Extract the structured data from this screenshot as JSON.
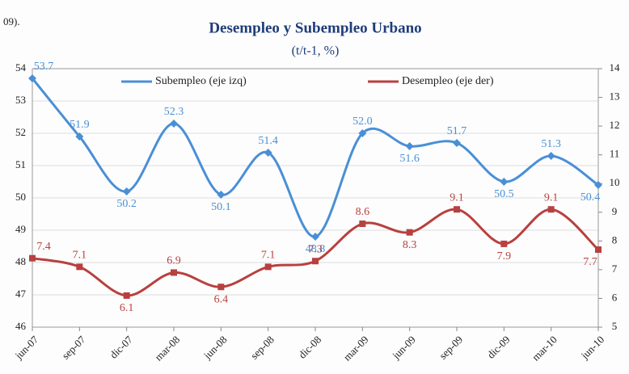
{
  "note": "09).",
  "chart_data": {
    "type": "line",
    "title": "Desempleo y Subempleo Urbano",
    "subtitle": "(t/t-1, %)",
    "categories": [
      "jun-07",
      "sep-07",
      "dic-07",
      "mar-08",
      "jun-08",
      "sep-08",
      "dic-08",
      "mar-09",
      "jun-09",
      "sep-09",
      "dic-09",
      "mar-10",
      "jun-10"
    ],
    "series": [
      {
        "name": "Subempleo (eje izq)",
        "color": "#4a8fd6",
        "marker": "diamond",
        "values": [
          53.7,
          51.9,
          50.2,
          52.3,
          50.1,
          51.4,
          48.8,
          52.0,
          51.6,
          51.7,
          50.5,
          51.3,
          50.4
        ],
        "value_labels": [
          "53.7",
          "51.9",
          "50.2",
          "52.3",
          "50.1",
          "51.4",
          "48.8",
          "52.0",
          "51.6",
          "51.7",
          "50.5",
          "51.3",
          "50.4"
        ]
      },
      {
        "name": "Desempleo (eje der)",
        "color": "#b8403f",
        "marker": "square",
        "axis": "y2",
        "values": [
          7.4,
          7.1,
          6.1,
          6.9,
          6.4,
          7.1,
          7.3,
          8.6,
          8.3,
          9.1,
          7.9,
          9.1,
          7.7
        ],
        "value_labels": [
          "7.4",
          "7.1",
          "6.1",
          "6.9",
          "6.4",
          "7.1",
          "7.3",
          "8.6",
          "8.3",
          "9.1",
          "7.9",
          "9.1",
          "7.7"
        ]
      }
    ],
    "ylim": [
      46,
      54
    ],
    "yticks": [
      46,
      47,
      48,
      49,
      50,
      51,
      52,
      53,
      54
    ],
    "y2lim": [
      5,
      14
    ],
    "y2ticks": [
      5,
      6,
      7,
      8,
      9,
      10,
      11,
      12,
      13,
      14
    ],
    "grid": true,
    "legend": "top"
  }
}
